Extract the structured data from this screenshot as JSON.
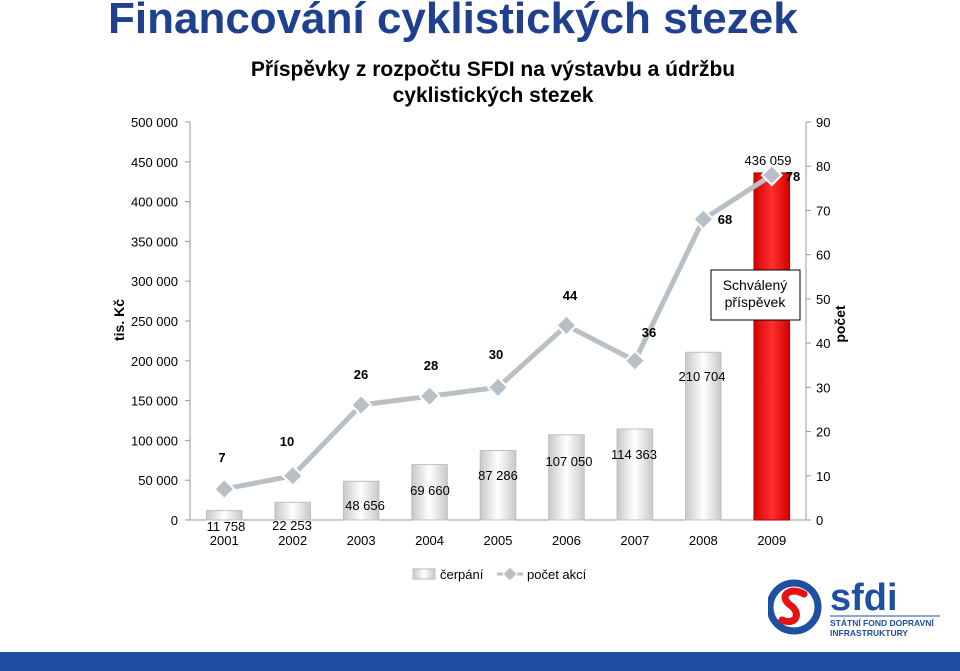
{
  "slide": {
    "title": "Financování cyklistických stezek"
  },
  "chart_data": {
    "type": "bar",
    "title_lines": [
      "Příspěvky z rozpočtu SFDI na výstavbu a údržbu",
      "cyklistických stezek"
    ],
    "categories": [
      "2001",
      "2002",
      "2003",
      "2004",
      "2005",
      "2006",
      "2007",
      "2008",
      "2009"
    ],
    "ylabel": "tis. Kč",
    "y2label": "počet",
    "ylim": [
      0,
      500000
    ],
    "y2lim": [
      0,
      90
    ],
    "yticks": [
      "0",
      "50 000",
      "100 000",
      "150 000",
      "200 000",
      "250 000",
      "300 000",
      "350 000",
      "400 000",
      "450 000",
      "500 000"
    ],
    "y2ticks": [
      "0",
      "10",
      "20",
      "30",
      "40",
      "50",
      "60",
      "70",
      "80",
      "90"
    ],
    "series": [
      {
        "name": "čerpání",
        "kind": "bar",
        "color": "#e0e0e0",
        "values": [
          11758,
          22253,
          48656,
          69660,
          87286,
          107050,
          114363,
          210704,
          436059
        ],
        "labels": [
          "11 758",
          "22 253",
          "48 656",
          "69 660",
          "87 286",
          "107 050",
          "114 363",
          "210 704",
          "436 059"
        ],
        "highlight_index": 8,
        "highlight_color": "#e81010"
      },
      {
        "name": "počet akcí",
        "kind": "line",
        "axis": "secondary",
        "color": "#b8bfc5",
        "values": [
          7,
          10,
          26,
          28,
          30,
          44,
          36,
          68,
          78
        ],
        "labels": [
          "7",
          "10",
          "26",
          "28",
          "30",
          "44",
          "36",
          "68",
          "78"
        ]
      }
    ],
    "annotation": {
      "lines": [
        "Schválený",
        "příspěvek"
      ],
      "points_to": "2009"
    },
    "grid": false,
    "legend_position": "bottom"
  },
  "logo": {
    "name": "sfdi",
    "lines": [
      "STÁTNÍ FOND DOPRAVNÍ",
      "INFRASTRUKTURY"
    ],
    "color": "#1f4fa0",
    "icon": "sfdi-s-icon"
  }
}
